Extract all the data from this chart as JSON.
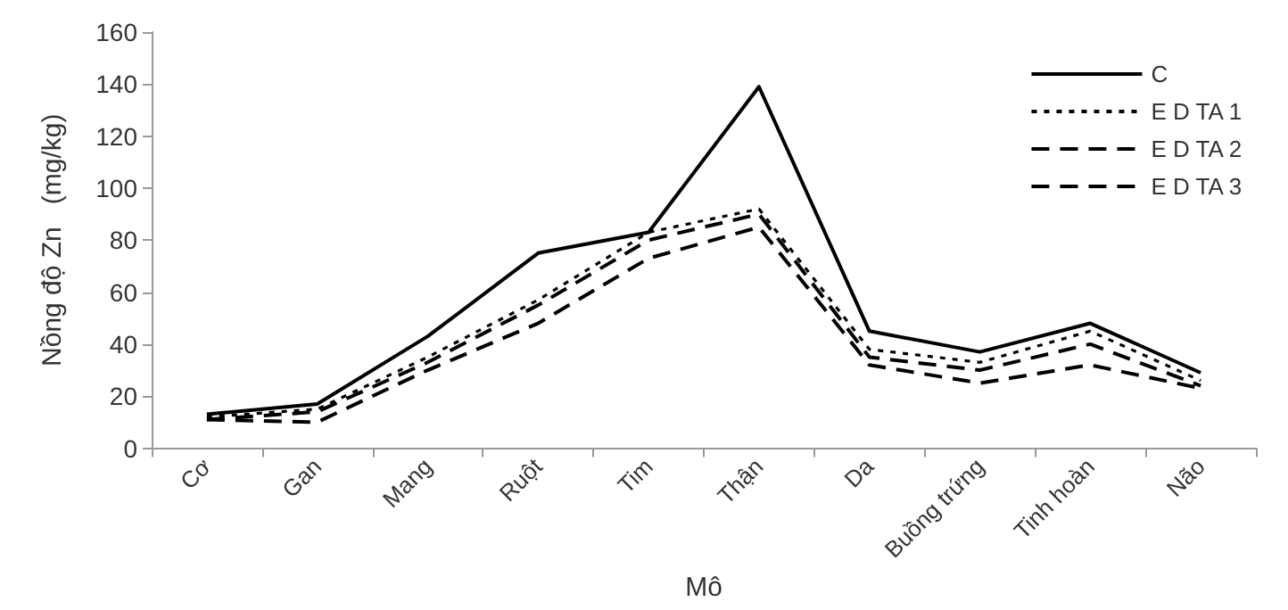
{
  "chart_data": {
    "type": "line",
    "xlabel": "Mô",
    "ylabel": "Nồng độ Zn   (mg/kg)",
    "categories": [
      "Cơ",
      "Gan",
      "Mang",
      "Ruột",
      "Tim",
      "Thận",
      "Da",
      "Buồng trứng",
      "Tinh hoàn",
      "Não"
    ],
    "series": [
      {
        "name": "C",
        "color": "#000000",
        "line_style": "solid",
        "values": [
          13,
          17,
          43,
          75,
          83,
          139,
          45,
          37,
          48,
          29
        ]
      },
      {
        "name": "E D TA 1",
        "color": "#000000",
        "line_style": "dotted",
        "values": [
          12,
          15,
          35,
          57,
          83,
          92,
          38,
          33,
          45,
          26
        ]
      },
      {
        "name": "E D TA 2",
        "color": "#000000",
        "line_style": "dashed",
        "values": [
          11,
          14,
          33,
          55,
          80,
          90,
          35,
          30,
          40,
          24
        ]
      },
      {
        "name": "E D TA 3",
        "color": "#000000",
        "line_style": "dashed",
        "values": [
          11,
          10,
          30,
          48,
          73,
          85,
          32,
          25,
          32,
          23
        ]
      }
    ],
    "ylim": [
      0,
      160
    ],
    "yticks": [
      0,
      20,
      40,
      60,
      80,
      100,
      120,
      140,
      160
    ],
    "grid": false,
    "legend": "top right",
    "marker": "none"
  }
}
